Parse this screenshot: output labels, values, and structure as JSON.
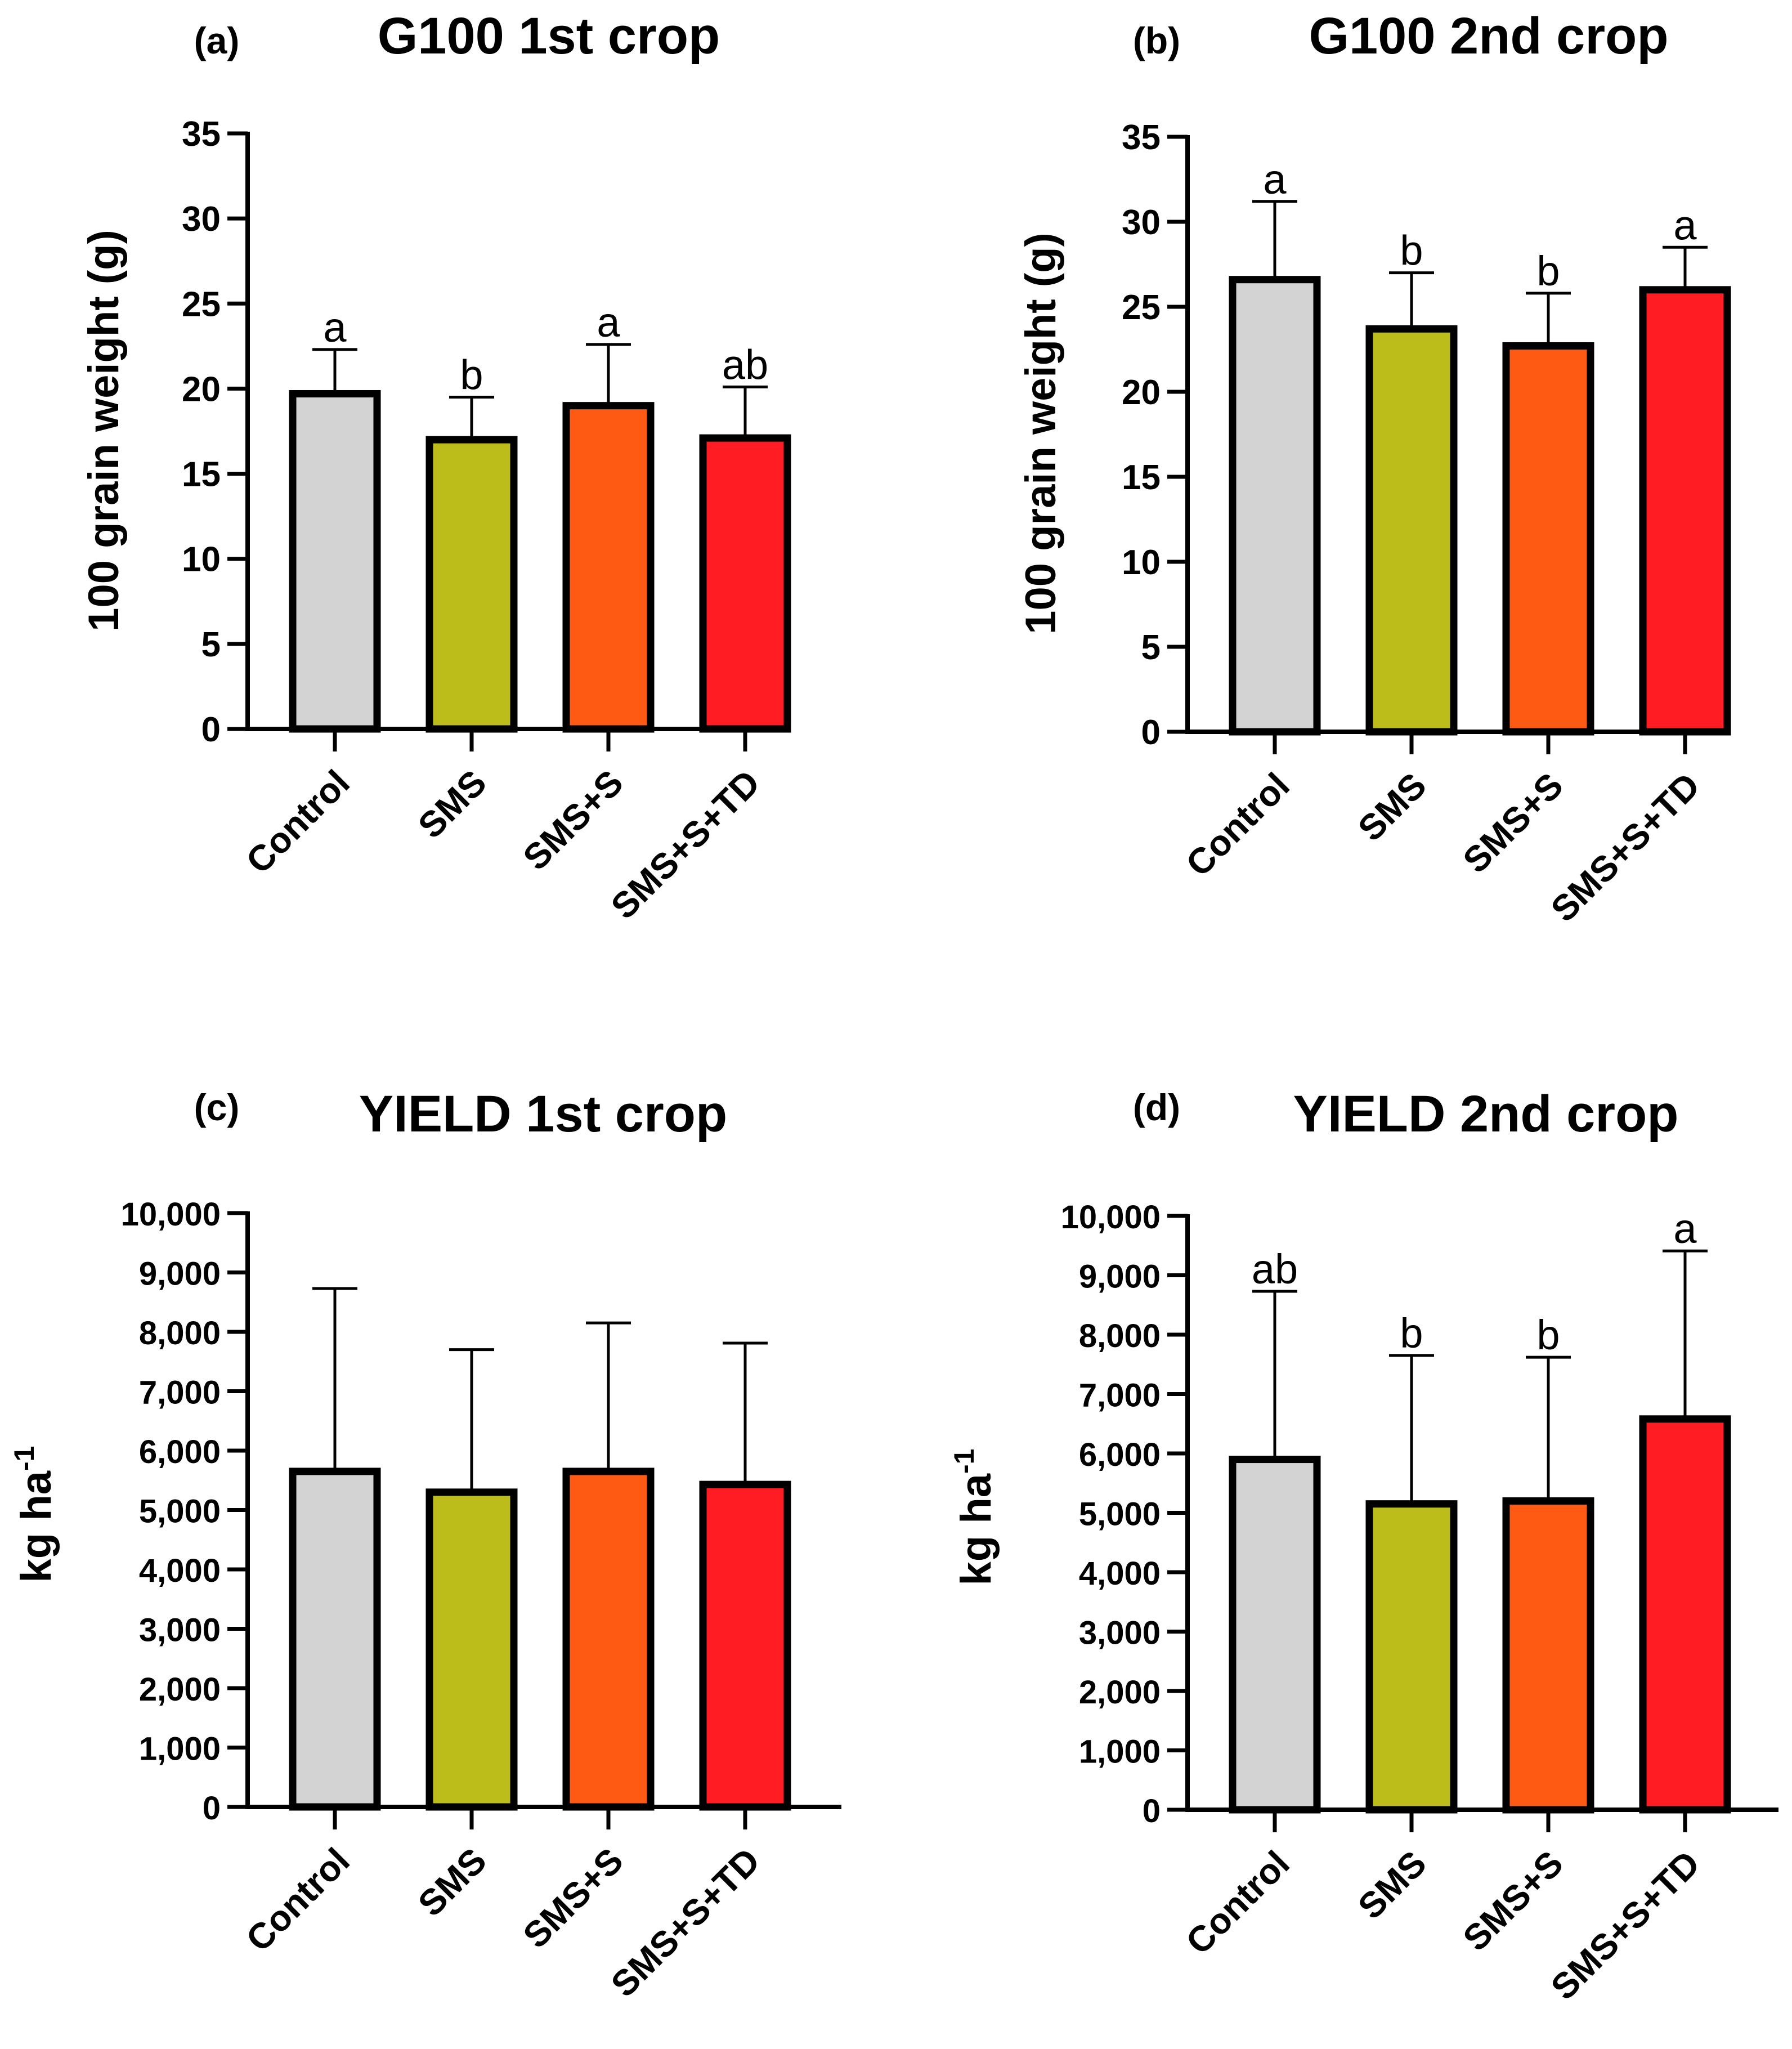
{
  "colors": {
    "Control": "#d3d3d3",
    "SMS": "#bcbd1a",
    "SMS+S": "#ff5a14",
    "SMS+S+TD": "#ff1c22",
    "axis": "#000000"
  },
  "chart_data": [
    {
      "type": "bar",
      "letter": "(a)",
      "title": "G100 1st crop",
      "ylabel": "100 grain weight (g)",
      "ylabel_sup": "",
      "categories": [
        "Control",
        "SMS",
        "SMS+S",
        "SMS+S+TD"
      ],
      "values": [
        19.7,
        17.0,
        19.0,
        17.1
      ],
      "errors": [
        2.6,
        2.5,
        3.6,
        3.0
      ],
      "significance": [
        "a",
        "b",
        "a",
        "ab"
      ],
      "ylim": [
        0,
        35
      ],
      "yticks": [
        0,
        5,
        10,
        15,
        20,
        25,
        30,
        35
      ],
      "ytick_labels": [
        "0",
        "5",
        "10",
        "15",
        "20",
        "25",
        "30",
        "35"
      ]
    },
    {
      "type": "bar",
      "letter": "(b)",
      "title": "G100 2nd crop",
      "ylabel": "100 grain weight (g)",
      "ylabel_sup": "",
      "categories": [
        "Control",
        "SMS",
        "SMS+S",
        "SMS+S+TD"
      ],
      "values": [
        26.6,
        23.7,
        22.7,
        26.0
      ],
      "errors": [
        4.6,
        3.3,
        3.1,
        2.5
      ],
      "significance": [
        "a",
        "b",
        "b",
        "a"
      ],
      "ylim": [
        0,
        35
      ],
      "yticks": [
        0,
        5,
        10,
        15,
        20,
        25,
        30,
        35
      ],
      "ytick_labels": [
        "0",
        "5",
        "10",
        "15",
        "20",
        "25",
        "30",
        "35"
      ]
    },
    {
      "type": "bar",
      "letter": "(c)",
      "title": "YIELD 1st crop",
      "ylabel": "kg ha",
      "ylabel_sup": "-1",
      "categories": [
        "Control",
        "SMS",
        "SMS+S",
        "SMS+S+TD"
      ],
      "values": [
        5650,
        5300,
        5650,
        5430
      ],
      "errors": [
        3080,
        2400,
        2500,
        2380
      ],
      "significance": [
        "",
        "",
        "",
        ""
      ],
      "ylim": [
        0,
        10000
      ],
      "yticks": [
        0,
        1000,
        2000,
        3000,
        4000,
        5000,
        6000,
        7000,
        8000,
        9000,
        10000
      ],
      "ytick_labels": [
        "0",
        "1,000",
        "2,000",
        "3,000",
        "4,000",
        "5,000",
        "6,000",
        "7,000",
        "8,000",
        "9,000",
        "10,000"
      ]
    },
    {
      "type": "bar",
      "letter": "(d)",
      "title": "YIELD 2nd crop",
      "ylabel": "kg ha",
      "ylabel_sup": "-1",
      "categories": [
        "Control",
        "SMS",
        "SMS+S",
        "SMS+S+TD"
      ],
      "values": [
        5900,
        5150,
        5200,
        6580
      ],
      "errors": [
        2830,
        2500,
        2420,
        2830
      ],
      "significance": [
        "ab",
        "b",
        "b",
        "a"
      ],
      "ylim": [
        0,
        10000
      ],
      "yticks": [
        0,
        1000,
        2000,
        3000,
        4000,
        5000,
        6000,
        7000,
        8000,
        9000,
        10000
      ],
      "ytick_labels": [
        "0",
        "1,000",
        "2,000",
        "3,000",
        "4,000",
        "5,000",
        "6,000",
        "7,000",
        "8,000",
        "9,000",
        "10,000"
      ]
    }
  ]
}
